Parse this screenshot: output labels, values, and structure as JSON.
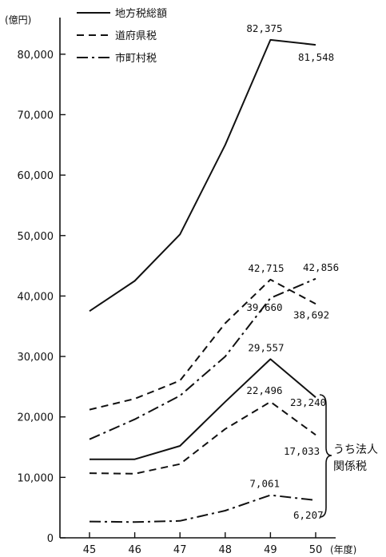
{
  "chart_data": {
    "type": "line",
    "categories": [
      "45",
      "46",
      "47",
      "48",
      "49",
      "50"
    ],
    "ylabel": "(億円)",
    "xlabel": "(年度)",
    "ylim": [
      0,
      85000
    ],
    "yticks": [
      0,
      10000,
      20000,
      30000,
      40000,
      50000,
      60000,
      70000,
      80000
    ],
    "ytick_labels": [
      "0",
      "10,000",
      "20,000",
      "30,000",
      "40,000",
      "50,000",
      "60,000",
      "70,000",
      "80,000"
    ],
    "grid": false,
    "legend_position": "top-left",
    "series": [
      {
        "name": "地方税総額",
        "style": "solid",
        "group": "total",
        "values": [
          37500,
          42500,
          50200,
          65000,
          82375,
          81548
        ]
      },
      {
        "name": "道府県税",
        "style": "dashed",
        "group": "total",
        "values": [
          21200,
          23000,
          26000,
          35500,
          42715,
          38692
        ]
      },
      {
        "name": "市町村税",
        "style": "dashdot",
        "group": "total",
        "values": [
          16300,
          19600,
          23500,
          30000,
          39660,
          42856
        ]
      },
      {
        "name": "",
        "style": "solid",
        "group": "corporate",
        "values": [
          13000,
          13000,
          15200,
          22500,
          29557,
          23240
        ]
      },
      {
        "name": "",
        "style": "dashed",
        "group": "corporate",
        "values": [
          10700,
          10600,
          12200,
          18000,
          22496,
          17033
        ]
      },
      {
        "name": "",
        "style": "dashdot",
        "group": "corporate",
        "values": [
          2700,
          2600,
          2800,
          4500,
          7061,
          6207
        ]
      }
    ],
    "annotations": [
      {
        "text": "82,375",
        "x": "49",
        "y": 82375
      },
      {
        "text": "81,548",
        "x": "50",
        "y": 81548
      },
      {
        "text": "42,715",
        "x": "49",
        "y": 42715
      },
      {
        "text": "42,856",
        "x": "50",
        "y": 42856
      },
      {
        "text": "39,660",
        "x": "49",
        "y": 39660
      },
      {
        "text": "38,692",
        "x": "50",
        "y": 38692
      },
      {
        "text": "29,557",
        "x": "49",
        "y": 29557
      },
      {
        "text": "22,496",
        "x": "49",
        "y": 22496
      },
      {
        "text": "23,240",
        "x": "50",
        "y": 23240
      },
      {
        "text": "17,033",
        "x": "50",
        "y": 17033
      },
      {
        "text": "7,061",
        "x": "49",
        "y": 7061
      },
      {
        "text": "6,207",
        "x": "50",
        "y": 6207
      }
    ],
    "brace_label": [
      "うち法人",
      "関係税"
    ]
  }
}
